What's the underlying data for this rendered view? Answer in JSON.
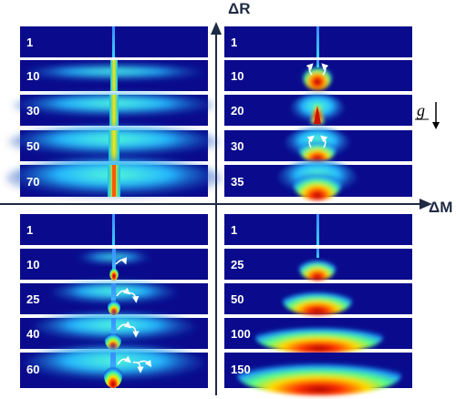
{
  "axes": {
    "vertical_label": "ΔR",
    "horizontal_label": "ΔM",
    "gravity_label": "g"
  },
  "quadrants": [
    {
      "id": "top-left",
      "frames": [
        "1",
        "10",
        "30",
        "50",
        "70"
      ]
    },
    {
      "id": "top-right",
      "frames": [
        "1",
        "10",
        "20",
        "30",
        "35"
      ]
    },
    {
      "id": "bottom-left",
      "frames": [
        "1",
        "10",
        "25",
        "40",
        "60"
      ]
    },
    {
      "id": "bottom-right",
      "frames": [
        "1",
        "25",
        "50",
        "100",
        "150"
      ]
    }
  ],
  "colors": {
    "background": "#0a0a8c",
    "axis": "#1f2a44"
  }
}
